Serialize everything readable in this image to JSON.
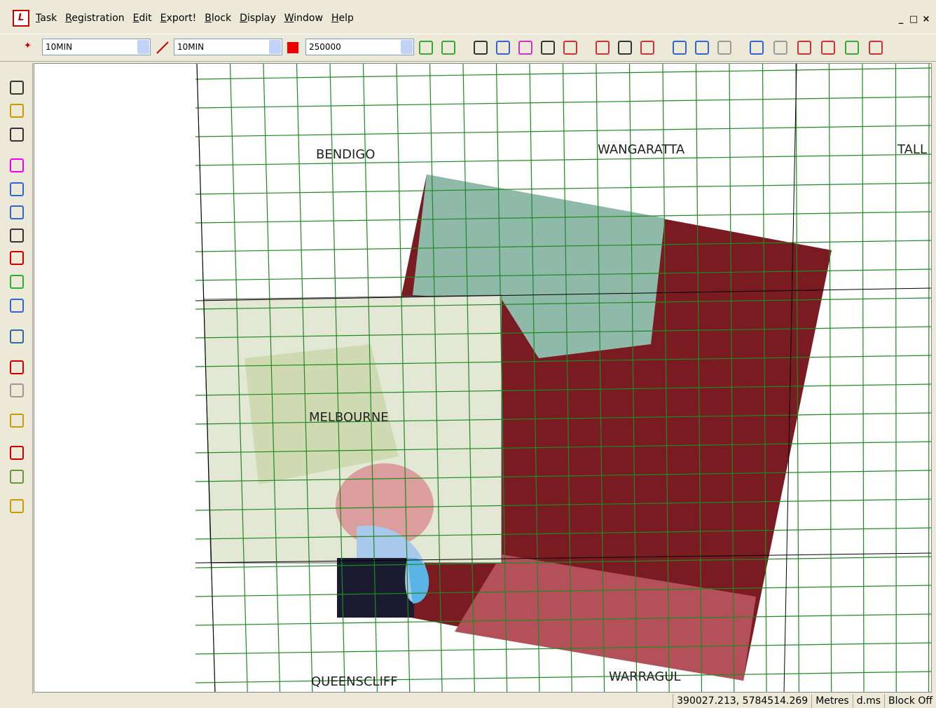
{
  "menu": [
    "Task",
    "Registration",
    "Edit",
    "Export!",
    "Block",
    "Display",
    "Window",
    "Help"
  ],
  "toolbar": {
    "combos": [
      "10MIN",
      "10MIN",
      "250000"
    ]
  },
  "map": {
    "labels": [
      "BENDIGO",
      "WANGARATTA",
      "TALL",
      "MELBOURNE",
      "QUEENSCLIFF",
      "WARRAGUL"
    ]
  },
  "status": [
    "390027.213, 5784514.269",
    "Metres",
    "d.ms",
    "Block Off"
  ]
}
